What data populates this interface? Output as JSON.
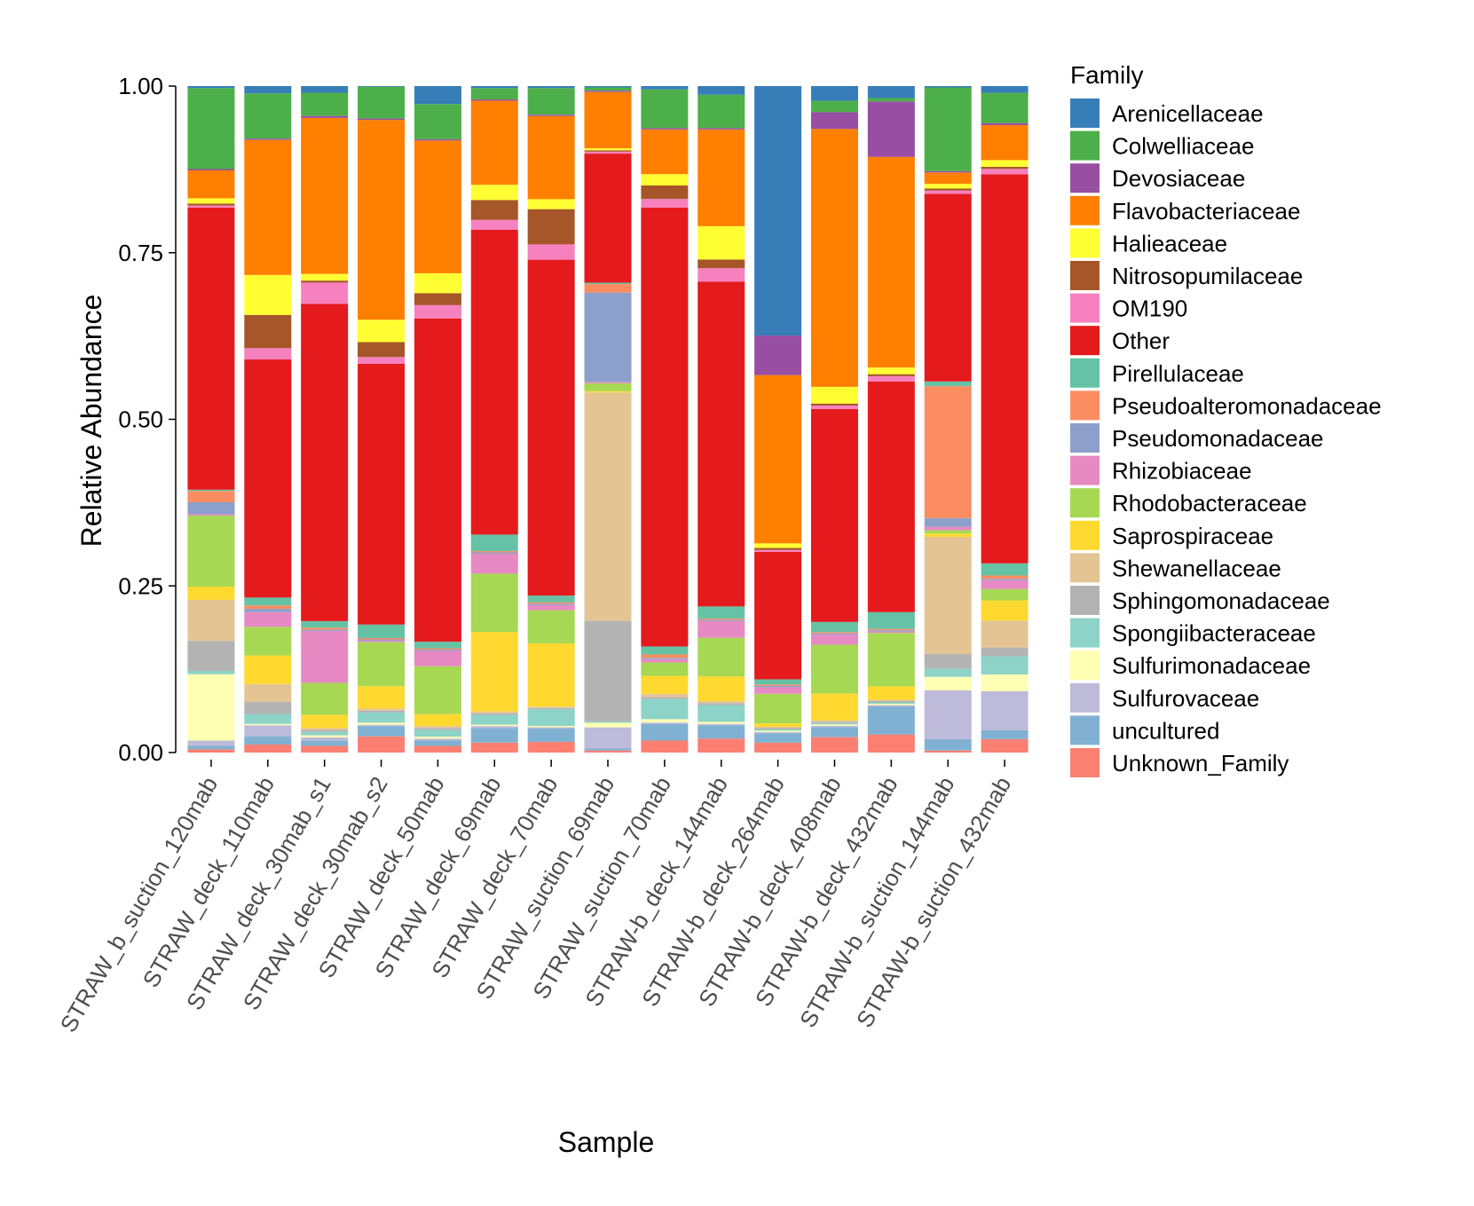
{
  "chart_data": {
    "type": "bar",
    "stacked": true,
    "xlabel": "Sample",
    "ylabel": "Relative Abundance",
    "ylim": [
      0,
      1
    ],
    "yticks": [
      "0.00",
      "0.25",
      "0.50",
      "0.75",
      "1.00"
    ],
    "ytick_values": [
      0,
      0.25,
      0.5,
      0.75,
      1.0
    ],
    "grid": false,
    "legend_title": "Family",
    "legend_position": "right",
    "categories": [
      "STRAW_b_suction_120mab",
      "STRAW_deck_110mab",
      "STRAW_deck_30mab_s1",
      "STRAW_deck_30mab_s2",
      "STRAW_deck_50mab",
      "STRAW_deck_69mab",
      "STRAW_deck_70mab",
      "STRAW_suction_69mab",
      "STRAW_suction_70mab",
      "STRAW-b_deck_144mab",
      "STRAW-b_deck_264mab",
      "STRAW-b_deck_408mab",
      "STRAW-b_deck_432mab",
      "STRAW-b_suction_144mab",
      "STRAW-b_suction_432mab"
    ],
    "series": [
      {
        "name": "Unknown_Family",
        "color": "#FB8072",
        "values": [
          0.005,
          0.012,
          0.01,
          0.024,
          0.01,
          0.015,
          0.016,
          0.003,
          0.018,
          0.021,
          0.015,
          0.023,
          0.027,
          0.003,
          0.02
        ]
      },
      {
        "name": "uncultured",
        "color": "#80B1D3",
        "values": [
          0.005,
          0.012,
          0.008,
          0.015,
          0.008,
          0.022,
          0.02,
          0.003,
          0.025,
          0.02,
          0.014,
          0.015,
          0.042,
          0.017,
          0.013
        ]
      },
      {
        "name": "Sulfurovaceae",
        "color": "#BEBADA",
        "values": [
          0.008,
          0.017,
          0.005,
          0.002,
          0.003,
          0.003,
          0.002,
          0.032,
          0.002,
          0.002,
          0.002,
          0.002,
          0.002,
          0.073,
          0.058
        ]
      },
      {
        "name": "Sulfurimonadaceae",
        "color": "#FFFFB3",
        "values": [
          0.1,
          0.002,
          0.003,
          0.003,
          0.003,
          0.002,
          0.002,
          0.007,
          0.005,
          0.003,
          0.002,
          0.002,
          0.002,
          0.02,
          0.025
        ]
      },
      {
        "name": "Spongiibacteraceae",
        "color": "#8DD3C7",
        "values": [
          0.005,
          0.015,
          0.005,
          0.015,
          0.01,
          0.015,
          0.025,
          0.002,
          0.03,
          0.025,
          0.002,
          0.002,
          0.002,
          0.012,
          0.027
        ]
      },
      {
        "name": "Sphingomonadaceae",
        "color": "#B3B3B3",
        "values": [
          0.045,
          0.018,
          0.003,
          0.003,
          0.003,
          0.002,
          0.002,
          0.152,
          0.003,
          0.003,
          0.002,
          0.002,
          0.002,
          0.022,
          0.013
        ]
      },
      {
        "name": "Shewanellaceae",
        "color": "#E5C494",
        "values": [
          0.062,
          0.027,
          0.003,
          0.003,
          0.003,
          0.003,
          0.002,
          0.345,
          0.005,
          0.003,
          0.002,
          0.002,
          0.002,
          0.175,
          0.04
        ]
      },
      {
        "name": "Saprospiraceae",
        "color": "#FFD92F",
        "values": [
          0.02,
          0.043,
          0.02,
          0.033,
          0.018,
          0.12,
          0.095,
          0.002,
          0.027,
          0.037,
          0.005,
          0.04,
          0.02,
          0.005,
          0.03
        ]
      },
      {
        "name": "Rhodobacteraceae",
        "color": "#A6D854",
        "values": [
          0.107,
          0.043,
          0.048,
          0.065,
          0.072,
          0.088,
          0.05,
          0.012,
          0.02,
          0.058,
          0.045,
          0.073,
          0.08,
          0.005,
          0.017
        ]
      },
      {
        "name": "Rhizobiaceae",
        "color": "#E78AC3",
        "values": [
          0.002,
          0.022,
          0.078,
          0.002,
          0.023,
          0.03,
          0.008,
          0.002,
          0.005,
          0.025,
          0.01,
          0.015,
          0.002,
          0.005,
          0.013
        ]
      },
      {
        "name": "Pseudomonadaceae",
        "color": "#8DA0CB",
        "values": [
          0.018,
          0.005,
          0.002,
          0.002,
          0.002,
          0.002,
          0.002,
          0.135,
          0.002,
          0.002,
          0.002,
          0.002,
          0.002,
          0.013,
          0.002
        ]
      },
      {
        "name": "Pseudoalteromonadaceae",
        "color": "#FC8D62",
        "values": [
          0.017,
          0.005,
          0.003,
          0.002,
          0.002,
          0.002,
          0.002,
          0.013,
          0.005,
          0.002,
          0.002,
          0.002,
          0.002,
          0.197,
          0.005
        ]
      },
      {
        "name": "Pirellulaceae",
        "color": "#66C2A5",
        "values": [
          0.002,
          0.012,
          0.01,
          0.02,
          0.01,
          0.025,
          0.01,
          0.002,
          0.012,
          0.018,
          0.008,
          0.015,
          0.025,
          0.007,
          0.018
        ]
      },
      {
        "name": "Other",
        "color": "#E41A1C",
        "values": [
          0.425,
          0.358,
          0.478,
          0.385,
          0.487,
          0.46,
          0.505,
          0.195,
          0.658,
          0.487,
          0.193,
          0.318,
          0.345,
          0.28,
          0.578
        ]
      },
      {
        "name": "OM190",
        "color": "#F781BF",
        "values": [
          0.003,
          0.017,
          0.032,
          0.01,
          0.02,
          0.015,
          0.023,
          0.003,
          0.013,
          0.02,
          0.003,
          0.005,
          0.008,
          0.005,
          0.008
        ]
      },
      {
        "name": "Nitrosopumilaceae",
        "color": "#A65628",
        "values": [
          0.003,
          0.05,
          0.003,
          0.022,
          0.018,
          0.03,
          0.053,
          0.002,
          0.02,
          0.013,
          0.003,
          0.003,
          0.003,
          0.003,
          0.003
        ]
      },
      {
        "name": "Halieaceae",
        "color": "#FFFF33",
        "values": [
          0.008,
          0.06,
          0.01,
          0.033,
          0.03,
          0.023,
          0.015,
          0.003,
          0.017,
          0.05,
          0.007,
          0.025,
          0.01,
          0.007,
          0.01
        ]
      },
      {
        "name": "Flavobacteriaceae",
        "color": "#FF7F00",
        "values": [
          0.042,
          0.203,
          0.235,
          0.295,
          0.2,
          0.127,
          0.125,
          0.085,
          0.067,
          0.145,
          0.255,
          0.385,
          0.315,
          0.017,
          0.052
        ]
      },
      {
        "name": "Devosiaceae",
        "color": "#984EA3",
        "values": [
          0.002,
          0.002,
          0.003,
          0.002,
          0.002,
          0.002,
          0.002,
          0.002,
          0.002,
          0.002,
          0.06,
          0.025,
          0.083,
          0.002,
          0.003
        ]
      },
      {
        "name": "Colwelliaceae",
        "color": "#4DAF4A",
        "values": [
          0.122,
          0.068,
          0.035,
          0.047,
          0.053,
          0.017,
          0.04,
          0.005,
          0.058,
          0.05,
          0.0,
          0.017,
          0.005,
          0.125,
          0.045
        ]
      },
      {
        "name": "Arenicellaceae",
        "color": "#377EB8",
        "values": [
          0.003,
          0.011,
          0.01,
          0.001,
          0.027,
          0.003,
          0.003,
          0.002,
          0.005,
          0.013,
          0.378,
          0.022,
          0.018,
          0.002,
          0.01
        ]
      }
    ],
    "legend_order": [
      "Arenicellaceae",
      "Colwelliaceae",
      "Devosiaceae",
      "Flavobacteriaceae",
      "Halieaceae",
      "Nitrosopumilaceae",
      "OM190",
      "Other",
      "Pirellulaceae",
      "Pseudoalteromonadaceae",
      "Pseudomonadaceae",
      "Rhizobiaceae",
      "Rhodobacteraceae",
      "Saprospiraceae",
      "Shewanellaceae",
      "Sphingomonadaceae",
      "Spongiibacteraceae",
      "Sulfurimonadaceae",
      "Sulfurovaceae",
      "uncultured",
      "Unknown_Family"
    ]
  }
}
